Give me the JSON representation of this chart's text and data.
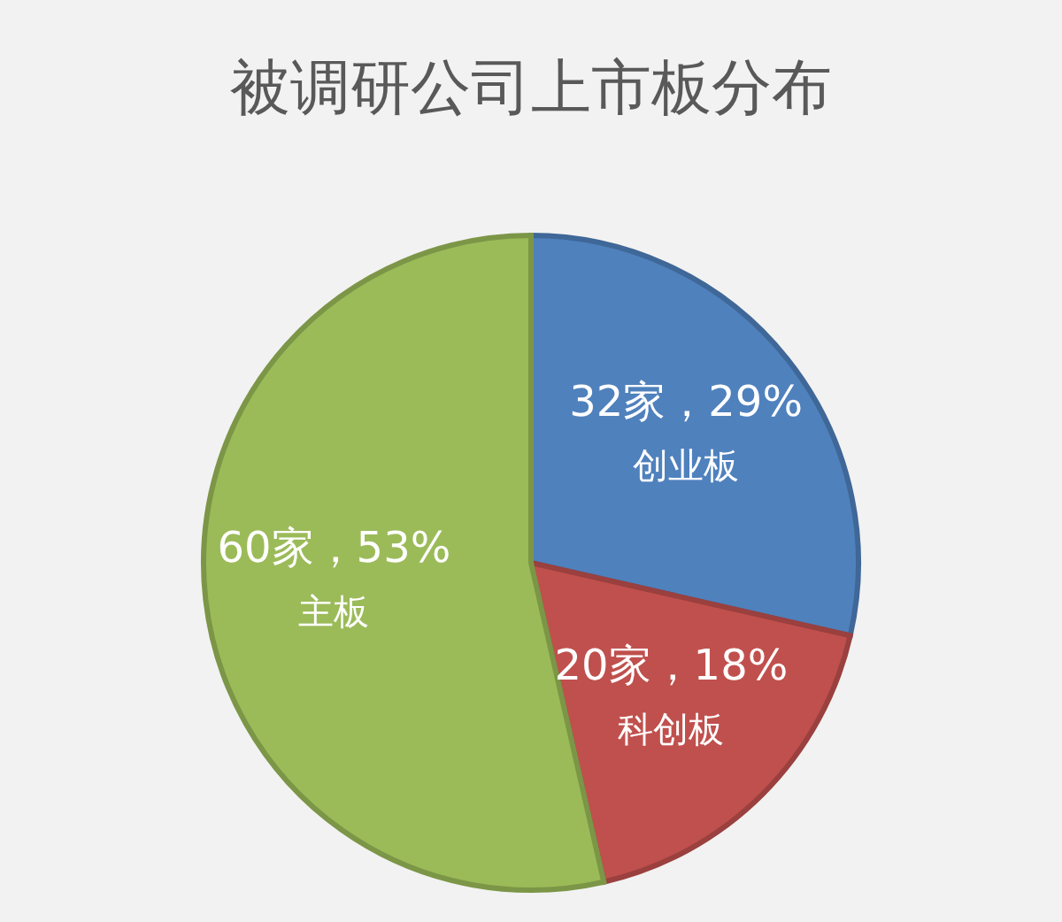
{
  "chart_data": {
    "type": "pie",
    "title": "被调研公司上市板分布",
    "categories": [
      "创业板",
      "科创板",
      "主板"
    ],
    "values": [
      32,
      20,
      60
    ],
    "value_labels": [
      "32家，29%",
      "20家，18%",
      "60家，53%"
    ],
    "colors": [
      "#4f81bd",
      "#c0504d",
      "#9bbb59"
    ],
    "legend": false
  }
}
